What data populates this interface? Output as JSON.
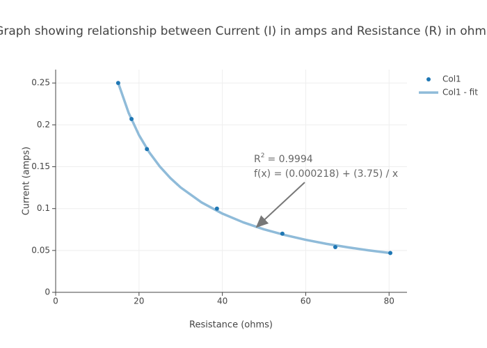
{
  "chart_data": {
    "type": "scatter",
    "title": "Graph showing relationship between Current (I) in amps and Resistance (R) in ohms",
    "x_label": "Resistance (ohms)",
    "y_label": "Current (amps)",
    "series": [
      {
        "name": "Col1",
        "mode": "markers",
        "color": "#1f77b4",
        "x": [
          15.0,
          18.2,
          21.9,
          38.7,
          54.4,
          67.1,
          80.3
        ],
        "values": [
          0.25,
          0.207,
          0.171,
          0.1,
          0.07,
          0.054,
          0.047
        ]
      },
      {
        "name": "Col1 - fit",
        "mode": "line",
        "color": "#8fbbd9",
        "x": [
          15,
          17.5,
          20,
          22.5,
          25,
          27.5,
          30,
          35,
          40,
          45,
          50,
          55,
          60,
          65,
          70,
          75,
          80
        ],
        "values": [
          0.2502,
          0.2145,
          0.1877,
          0.1669,
          0.1502,
          0.1366,
          0.1252,
          0.1074,
          0.094,
          0.0836,
          0.0752,
          0.0684,
          0.0627,
          0.0579,
          0.0538,
          0.0502,
          0.0471
        ]
      }
    ],
    "annotation": {
      "r2_symbol": "R",
      "r2_exponent": "2",
      "r2_value": "= 0.9994",
      "formula": "f(x) = (0.000218) + (3.75) / x"
    },
    "xlim": [
      0,
      84.3
    ],
    "ylim": [
      0,
      0.266
    ],
    "xticks": [
      0,
      20,
      40,
      60,
      80
    ],
    "yticks": [
      0,
      0.05,
      0.1,
      0.15,
      0.2,
      0.25
    ],
    "grid": true,
    "legend_position": "top-right"
  }
}
